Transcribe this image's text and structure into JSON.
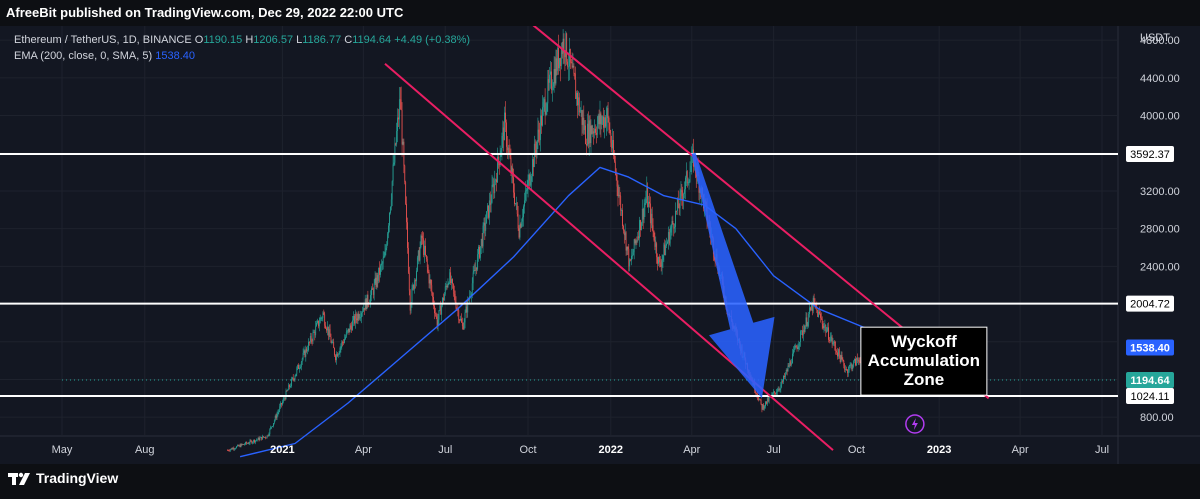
{
  "header": {
    "published": "AfreeBit published on TradingView.com, Dec 29, 2022 22:00 UTC"
  },
  "legend": {
    "symbol": "Ethereum / TetherUS, 1D, BINANCE",
    "o_label": "O",
    "o_value": "1190.15",
    "h_label": "H",
    "h_value": "1206.57",
    "l_label": "L",
    "l_value": "1186.77",
    "c_label": "C",
    "c_value": "1194.64",
    "change": "+4.49 (+0.38%)",
    "ema_label": "EMA (200, close, 0, SMA, 5)",
    "ema_value": "1538.40"
  },
  "footer": {
    "brand": "TradingView"
  },
  "colors": {
    "background": "#131722",
    "up": "#26a69a",
    "down": "#ef5350",
    "ema": "#2962ff",
    "channel": "#e91e63",
    "level": "#ffffff",
    "arrow": "#2962ff",
    "lightning": "#b13cf0"
  },
  "icons": {
    "tv_logo": "tradingview-logo-icon",
    "alert": "lightning-icon"
  },
  "chart_data": {
    "type": "candlestick",
    "symbol": "ETHUSDT",
    "interval": "1D",
    "y_axis": {
      "unit": "USDT",
      "ticks": [
        800,
        1200,
        1600,
        2000,
        2400,
        2800,
        3200,
        3600,
        4000,
        4400,
        4800
      ],
      "range": [
        600,
        4950
      ],
      "position": "right"
    },
    "x_axis": {
      "ticks": [
        {
          "label": "May",
          "date": "2020-05-01"
        },
        {
          "label": "Aug",
          "date": "2020-08-01"
        },
        {
          "label": "2021",
          "date": "2021-01-01"
        },
        {
          "label": "Apr",
          "date": "2021-04-01"
        },
        {
          "label": "Jul",
          "date": "2021-07-01"
        },
        {
          "label": "Oct",
          "date": "2021-10-01"
        },
        {
          "label": "2022",
          "date": "2022-01-01"
        },
        {
          "label": "Apr",
          "date": "2022-04-01"
        },
        {
          "label": "Jul",
          "date": "2022-07-01"
        },
        {
          "label": "Oct",
          "date": "2022-10-01"
        },
        {
          "label": "2023",
          "date": "2023-01-01"
        },
        {
          "label": "Apr",
          "date": "2023-04-01"
        },
        {
          "label": "Jul",
          "date": "2023-07-01"
        }
      ],
      "bold": [
        "2021",
        "2022",
        "2023"
      ]
    },
    "price_path": [
      {
        "date": "2020-11-01",
        "price": 450
      },
      {
        "date": "2020-12-15",
        "price": 600
      },
      {
        "date": "2021-01-10",
        "price": 1150
      },
      {
        "date": "2021-02-15",
        "price": 1900
      },
      {
        "date": "2021-03-01",
        "price": 1450
      },
      {
        "date": "2021-03-20",
        "price": 1800
      },
      {
        "date": "2021-04-10",
        "price": 2100
      },
      {
        "date": "2021-04-25",
        "price": 2500
      },
      {
        "date": "2021-05-12",
        "price": 4200
      },
      {
        "date": "2021-05-23",
        "price": 2000
      },
      {
        "date": "2021-06-05",
        "price": 2700
      },
      {
        "date": "2021-06-22",
        "price": 1800
      },
      {
        "date": "2021-07-05",
        "price": 2300
      },
      {
        "date": "2021-07-20",
        "price": 1750
      },
      {
        "date": "2021-08-25",
        "price": 3300
      },
      {
        "date": "2021-09-05",
        "price": 3900
      },
      {
        "date": "2021-09-21",
        "price": 2800
      },
      {
        "date": "2021-10-20",
        "price": 4150
      },
      {
        "date": "2021-11-10",
        "price": 4800
      },
      {
        "date": "2021-12-04",
        "price": 3800
      },
      {
        "date": "2021-12-28",
        "price": 4000
      },
      {
        "date": "2022-01-22",
        "price": 2400
      },
      {
        "date": "2022-02-10",
        "price": 3150
      },
      {
        "date": "2022-02-24",
        "price": 2400
      },
      {
        "date": "2022-04-03",
        "price": 3550
      },
      {
        "date": "2022-05-12",
        "price": 1900
      },
      {
        "date": "2022-06-18",
        "price": 900
      },
      {
        "date": "2022-07-10",
        "price": 1150
      },
      {
        "date": "2022-08-14",
        "price": 2000
      },
      {
        "date": "2022-09-20",
        "price": 1300
      },
      {
        "date": "2022-10-25",
        "price": 1600
      },
      {
        "date": "2022-11-10",
        "price": 1100
      },
      {
        "date": "2022-12-29",
        "price": 1194.64
      }
    ],
    "ema_path": [
      {
        "date": "2020-11-15",
        "price": 380
      },
      {
        "date": "2021-01-15",
        "price": 520
      },
      {
        "date": "2021-03-15",
        "price": 950
      },
      {
        "date": "2021-05-15",
        "price": 1450
      },
      {
        "date": "2021-07-15",
        "price": 1950
      },
      {
        "date": "2021-09-15",
        "price": 2500
      },
      {
        "date": "2021-11-15",
        "price": 3150
      },
      {
        "date": "2021-12-20",
        "price": 3450
      },
      {
        "date": "2022-01-20",
        "price": 3350
      },
      {
        "date": "2022-03-01",
        "price": 3150
      },
      {
        "date": "2022-04-15",
        "price": 3050
      },
      {
        "date": "2022-05-20",
        "price": 2800
      },
      {
        "date": "2022-07-01",
        "price": 2300
      },
      {
        "date": "2022-08-20",
        "price": 1950
      },
      {
        "date": "2022-10-10",
        "price": 1750
      },
      {
        "date": "2022-12-29",
        "price": 1538.4
      }
    ],
    "horizontal_levels": [
      3592.37,
      2004.72,
      1024.11
    ],
    "channel_lines": [
      {
        "from": {
          "date": "2021-09-25",
          "price": 5050
        },
        "to": {
          "date": "2023-02-25",
          "price": 1000
        }
      },
      {
        "from": {
          "date": "2021-04-25",
          "price": 4550
        },
        "to": {
          "date": "2022-09-05",
          "price": 450
        }
      }
    ],
    "arrow": {
      "from": {
        "date": "2022-04-03",
        "price": 3600
      },
      "to": {
        "date": "2022-06-18",
        "price": 1000
      }
    },
    "price_tags": [
      {
        "value": 3592.37,
        "label": "3592.37",
        "style": "level"
      },
      {
        "value": 2004.72,
        "label": "2004.72",
        "style": "level"
      },
      {
        "value": 1538.4,
        "label": "1538.40",
        "style": "ema"
      },
      {
        "value": 1194.64,
        "label": "1194.64",
        "style": "last"
      },
      {
        "value": 1024.11,
        "label": "1024.11",
        "style": "level"
      }
    ],
    "annotation": {
      "lines": [
        "Wyckoff",
        "Accumulation",
        "Zone"
      ],
      "at": {
        "date": "2022-12-15",
        "price": 1500
      }
    }
  }
}
